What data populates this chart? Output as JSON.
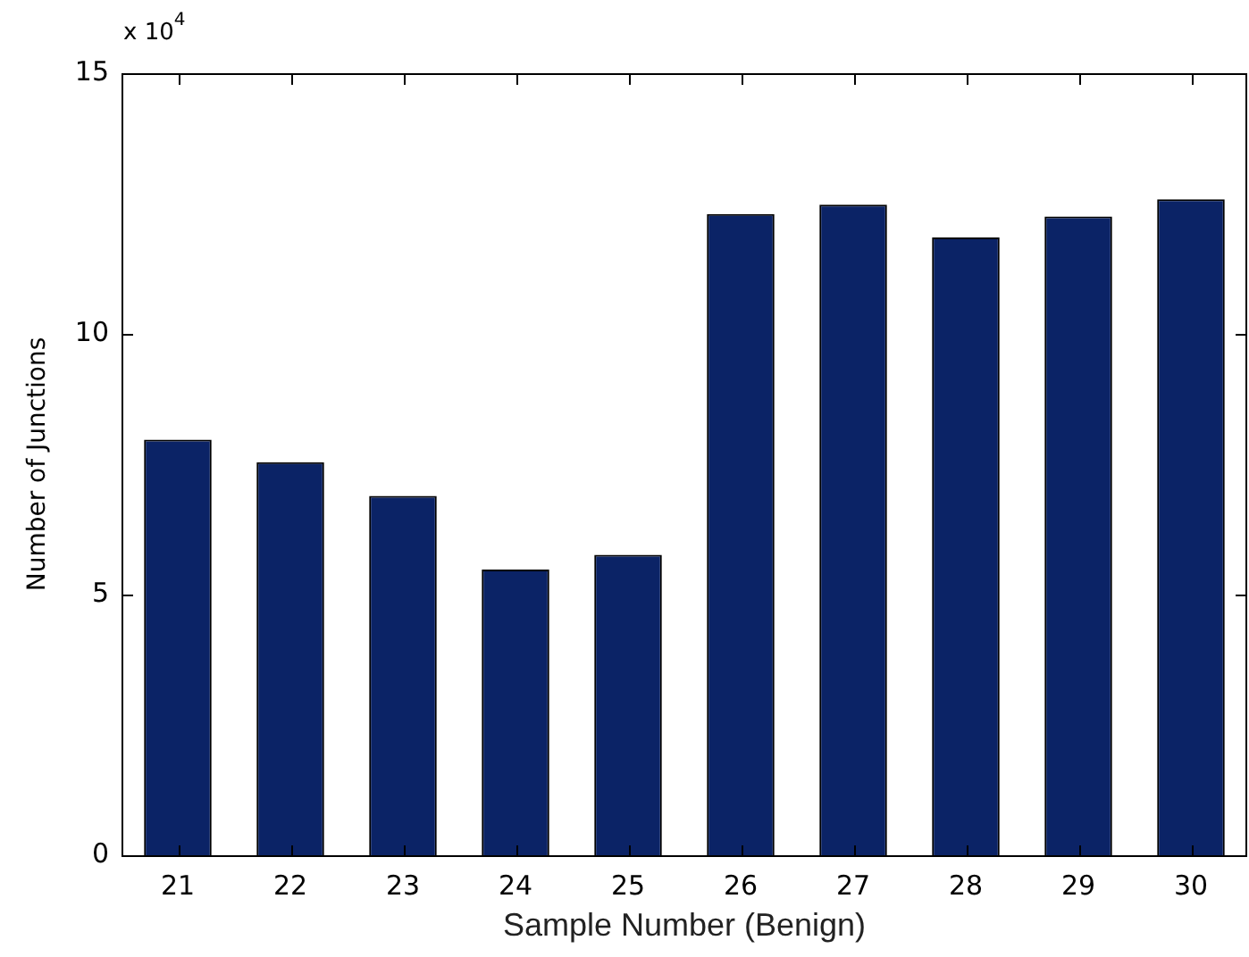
{
  "chart_data": {
    "type": "bar",
    "xlabel": "Sample Number (Benign)",
    "ylabel": "Number of Junctions",
    "categories": [
      "21",
      "22",
      "23",
      "24",
      "25",
      "26",
      "27",
      "28",
      "29",
      "30"
    ],
    "values": [
      7.97,
      7.54,
      6.89,
      5.48,
      5.76,
      12.3,
      12.48,
      11.85,
      12.25,
      12.58
    ],
    "color": "#0b2366",
    "ylim": [
      0,
      15
    ],
    "yticks": [
      0,
      5,
      10,
      15
    ],
    "annotations": [
      "x 10$^{4}$"
    ]
  }
}
